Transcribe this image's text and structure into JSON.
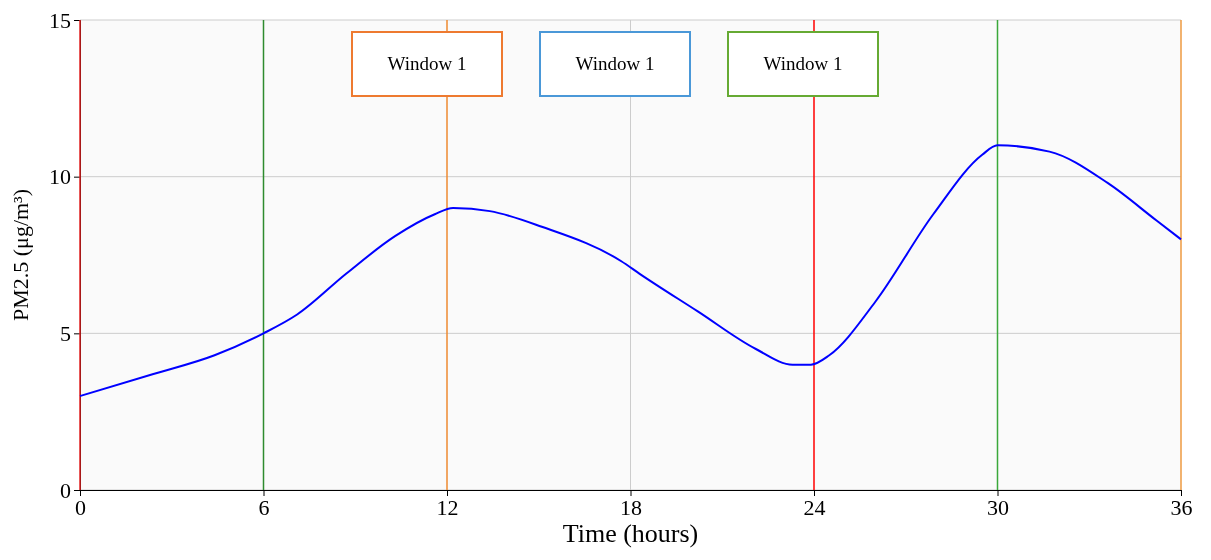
{
  "chart_data": {
    "type": "line",
    "xlabel": "Time (hours)",
    "ylabel": "PM2.5 (μg/m³)",
    "x": [
      0,
      2.4,
      4.4,
      6,
      7.1,
      8.7,
      10.3,
      11.6,
      12.2,
      13.4,
      15.1,
      17.7,
      18.3,
      20.2,
      22.1,
      23.3,
      23.9,
      24.5,
      26,
      27.9,
      29.5,
      30,
      31.7,
      33.6,
      35.2,
      36
    ],
    "series": [
      {
        "color": "#0000ff",
        "values": [
          3.0,
          3.7,
          4.3,
          5.0,
          5.6,
          6.9,
          8.1,
          8.8,
          9.0,
          8.9,
          8.4,
          7.3,
          6.9,
          5.7,
          4.5,
          4.0,
          4.0,
          4.3,
          6.0,
          8.8,
          10.7,
          11.0,
          10.8,
          9.8,
          8.6,
          8.0
        ]
      }
    ],
    "xlim": [
      0,
      36
    ],
    "xticks": [
      0,
      6,
      12,
      18,
      24,
      30,
      36
    ],
    "ylim": [
      0,
      15
    ],
    "yticks": [
      0,
      5,
      10,
      15
    ],
    "grid": true,
    "marker": "none",
    "line_style": "solid",
    "ref_lines": [
      {
        "axis": "x",
        "value": 0,
        "color": "#e02020"
      },
      {
        "axis": "x",
        "value": 6,
        "color": "#2e8b2e"
      },
      {
        "axis": "x",
        "value": 12,
        "color": "#ee8a30"
      },
      {
        "axis": "x",
        "value": 24,
        "color": "#ff0000"
      },
      {
        "axis": "x",
        "value": 30,
        "color": "#3aa83a"
      },
      {
        "axis": "x",
        "value": 36,
        "color": "#ee9a40"
      }
    ],
    "annotations": [
      "Window 1",
      "Window 1",
      "Window 1"
    ]
  }
}
